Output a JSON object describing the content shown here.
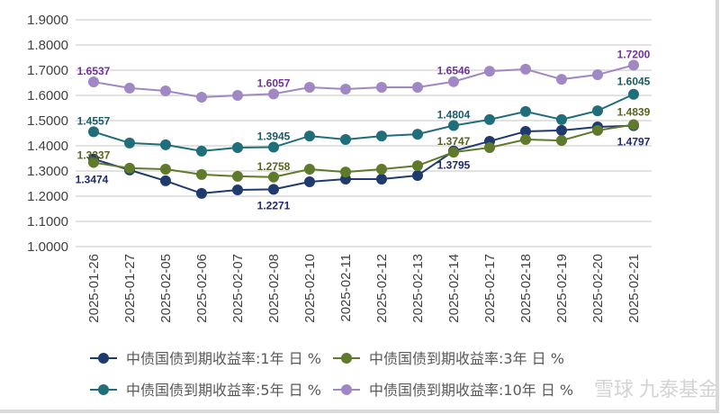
{
  "chart_data": {
    "type": "line",
    "title": "",
    "xlabel": "",
    "ylabel": "",
    "ylim": [
      1.0,
      1.9
    ],
    "yticks": [
      "1.0000",
      "1.1000",
      "1.2000",
      "1.3000",
      "1.4000",
      "1.5000",
      "1.6000",
      "1.7000",
      "1.8000",
      "1.9000"
    ],
    "grid": true,
    "legend_position": "bottom",
    "categories": [
      "2025-01-26",
      "2025-01-27",
      "2025-02-05",
      "2025-02-06",
      "2025-02-07",
      "2025-02-08",
      "2025-02-10",
      "2025-02-11",
      "2025-02-12",
      "2025-02-13",
      "2025-02-14",
      "2025-02-17",
      "2025-02-18",
      "2025-02-19",
      "2025-02-20",
      "2025-02-21"
    ],
    "series": [
      {
        "name": "中债国债到期收益率:1年 日 %",
        "color": "#1f3b6e",
        "label_color": "#1f2a6b",
        "values": [
          1.3474,
          1.304,
          1.261,
          1.211,
          1.225,
          1.2271,
          1.257,
          1.268,
          1.268,
          1.282,
          1.3795,
          1.418,
          1.457,
          1.461,
          1.475,
          1.4797
        ],
        "labels": {
          "0": "1.3474",
          "5": "1.2271",
          "10": "1.3795",
          "15": "1.4797"
        }
      },
      {
        "name": "中债国债到期收益率:3年 日 %",
        "color": "#5e7a2a",
        "label_color": "#56641f",
        "values": [
          1.3337,
          1.311,
          1.307,
          1.286,
          1.279,
          1.2758,
          1.307,
          1.296,
          1.307,
          1.321,
          1.3747,
          1.393,
          1.425,
          1.421,
          1.461,
          1.4839
        ],
        "labels": {
          "0": "1.3337",
          "5": "1.2758",
          "10": "1.3747",
          "15": "1.4839"
        }
      },
      {
        "name": "中债国债到期收益率:5年 日 %",
        "color": "#1f6e7a",
        "label_color": "#1a5a66",
        "values": [
          1.4557,
          1.411,
          1.404,
          1.379,
          1.393,
          1.3945,
          1.439,
          1.425,
          1.439,
          1.446,
          1.4804,
          1.504,
          1.536,
          1.504,
          1.539,
          1.6045
        ],
        "labels": {
          "0": "1.4557",
          "5": "1.3945",
          "10": "1.4804",
          "15": "1.6045"
        }
      },
      {
        "name": "中债国债到期收益率:10年 日 %",
        "color": "#a088c4",
        "label_color": "#7030a0",
        "values": [
          1.6537,
          1.629,
          1.618,
          1.593,
          1.6,
          1.6057,
          1.632,
          1.625,
          1.632,
          1.632,
          1.6546,
          1.696,
          1.704,
          1.664,
          1.682,
          1.72
        ],
        "labels": {
          "0": "1.6537",
          "5": "1.6057",
          "10": "1.6546",
          "15": "1.7200"
        }
      }
    ]
  },
  "watermark": "雪球 九泰基金"
}
